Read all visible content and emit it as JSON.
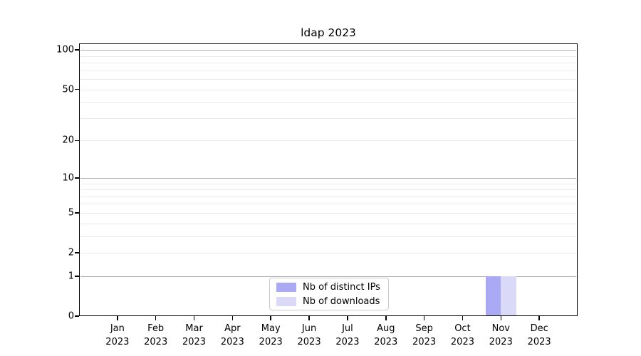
{
  "chart_data": {
    "type": "bar",
    "title": "ldap 2023",
    "categories": [
      "Jan",
      "Feb",
      "Mar",
      "Apr",
      "May",
      "Jun",
      "Jul",
      "Aug",
      "Sep",
      "Oct",
      "Nov",
      "Dec"
    ],
    "category_year": "2023",
    "series": [
      {
        "name": "Nb of distinct IPs",
        "color": "#a9a9f4",
        "values": [
          0,
          0,
          0,
          0,
          0,
          0,
          0,
          0,
          0,
          0,
          1,
          0
        ]
      },
      {
        "name": "Nb of downloads",
        "color": "#dadaf8",
        "values": [
          0,
          0,
          0,
          0,
          0,
          0,
          0,
          0,
          0,
          0,
          1,
          0
        ]
      }
    ],
    "yscale": "log1p",
    "ylim": [
      0,
      112
    ],
    "yticks": [
      0,
      1,
      2,
      5,
      10,
      20,
      50,
      100
    ],
    "grid": {
      "major_lines": [
        1,
        10,
        100
      ],
      "minor_lines": [
        2,
        3,
        4,
        5,
        6,
        7,
        8,
        9,
        20,
        30,
        40,
        50,
        60,
        70,
        80,
        90
      ],
      "major_color": "#b0b0b0",
      "minor_color": "#e9e9e9"
    },
    "legend": {
      "position": "lower center"
    },
    "axis_color": "#000000",
    "background_color": "#ffffff"
  }
}
